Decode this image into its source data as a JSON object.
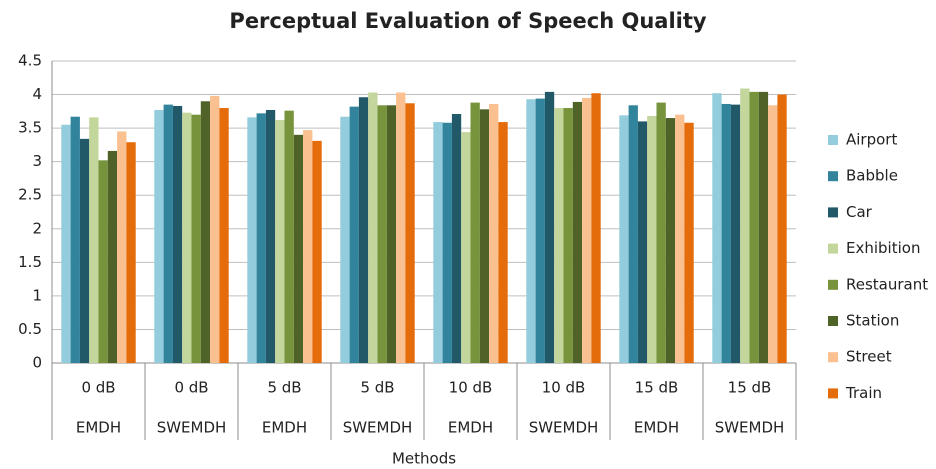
{
  "chart_data": {
    "type": "bar",
    "title": "Perceptual Evaluation of Speech Quality",
    "x_label": "Methods",
    "categories": [
      "0 dB",
      "0 dB",
      "5 dB",
      "5 dB",
      "10 dB",
      "10 dB",
      "15 dB",
      "15 dB"
    ],
    "category_groups": [
      "EMDH",
      "SWEMDH",
      "EMDH",
      "SWEMDH",
      "EMDH",
      "SWEMDH",
      "EMDH",
      "SWEMDH"
    ],
    "series": [
      {
        "name": "Airport",
        "color": "#93cddd",
        "values": [
          3.55,
          3.77,
          3.66,
          3.67,
          3.59,
          3.93,
          3.69,
          4.02
        ]
      },
      {
        "name": "Babble",
        "color": "#31849b",
        "values": [
          3.67,
          3.85,
          3.72,
          3.82,
          3.58,
          3.94,
          3.84,
          3.86
        ]
      },
      {
        "name": "Car",
        "color": "#215968",
        "values": [
          3.34,
          3.83,
          3.77,
          3.96,
          3.71,
          4.04,
          3.6,
          3.85
        ]
      },
      {
        "name": "Exhibition",
        "color": "#c3d69b",
        "values": [
          3.66,
          3.73,
          3.62,
          4.03,
          3.44,
          3.8,
          3.68,
          4.09
        ]
      },
      {
        "name": "Restaurant",
        "color": "#77933c",
        "values": [
          3.02,
          3.7,
          3.76,
          3.84,
          3.88,
          3.8,
          3.88,
          4.04
        ]
      },
      {
        "name": "Station",
        "color": "#4f6228",
        "values": [
          3.16,
          3.9,
          3.4,
          3.84,
          3.78,
          3.89,
          3.65,
          4.04
        ]
      },
      {
        "name": "Street",
        "color": "#fac090",
        "values": [
          3.45,
          3.98,
          3.47,
          4.03,
          3.86,
          3.95,
          3.7,
          3.84
        ]
      },
      {
        "name": "Train",
        "color": "#e46c0a",
        "values": [
          3.29,
          3.8,
          3.31,
          3.87,
          3.59,
          4.02,
          3.58,
          4.0
        ]
      }
    ],
    "ylim": [
      0,
      4.5
    ],
    "yticks": [
      0,
      0.5,
      1,
      1.5,
      2,
      2.5,
      3,
      3.5,
      4,
      4.5
    ],
    "grid": true,
    "legend": "right"
  }
}
